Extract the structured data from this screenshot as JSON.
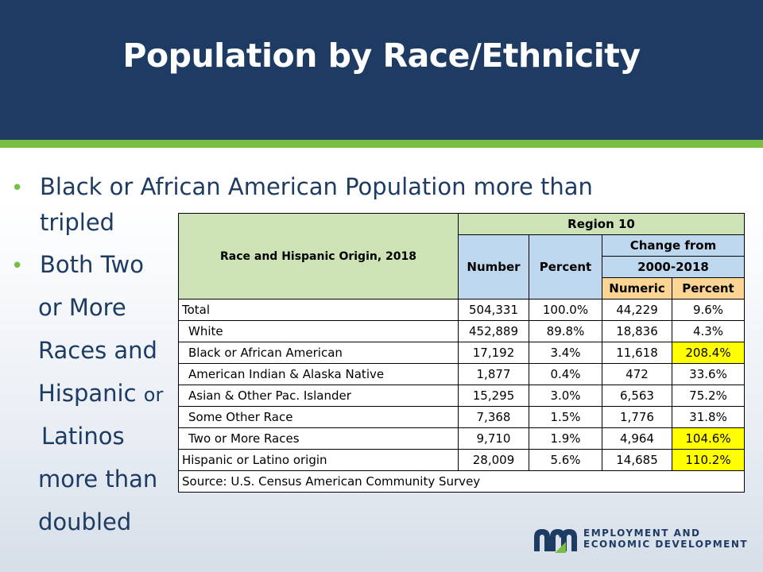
{
  "slide": {
    "title": "Population by Race/Ethnicity"
  },
  "bullets": {
    "b1_line1": "Black or African American Population more than",
    "b1_line2": "tripled",
    "b2_line1": "Both Two",
    "b2_line2": "or More",
    "b2_line3": "Races and",
    "b2_line4_main": "Hispanic",
    "b2_line4_small": "or",
    "b2_line5": "Latinos",
    "b2_line6": "more than",
    "b2_line7": "doubled"
  },
  "table": {
    "race_header": "Race and Hispanic Origin, 2018",
    "region_header": "Region 10",
    "number_header": "Number",
    "percent_header": "Percent",
    "change_header_1": "Change from",
    "change_header_2": "2000-2018",
    "numeric_header": "Numeric",
    "change_percent_header": "Percent",
    "rows": [
      {
        "label": "Total",
        "number": "504,331",
        "percent": "100.0%",
        "numeric": "44,229",
        "change_percent": "9.6%"
      },
      {
        "label": "White",
        "number": "452,889",
        "percent": "89.8%",
        "numeric": "18,836",
        "change_percent": "4.3%"
      },
      {
        "label": "Black or African American",
        "number": "17,192",
        "percent": "3.4%",
        "numeric": "11,618",
        "change_percent": "208.4%"
      },
      {
        "label": "American Indian & Alaska Native",
        "number": "1,877",
        "percent": "0.4%",
        "numeric": "472",
        "change_percent": "33.6%"
      },
      {
        "label": "Asian & Other Pac. Islander",
        "number": "15,295",
        "percent": "3.0%",
        "numeric": "6,563",
        "change_percent": "75.2%"
      },
      {
        "label": "Some Other Race",
        "number": "7,368",
        "percent": "1.5%",
        "numeric": "1,776",
        "change_percent": "31.8%"
      },
      {
        "label": "Two or More Races",
        "number": "9,710",
        "percent": "1.9%",
        "numeric": "4,964",
        "change_percent": "104.6%"
      },
      {
        "label": "Hispanic or Latino origin",
        "number": "28,009",
        "percent": "5.6%",
        "numeric": "14,685",
        "change_percent": "110.2%"
      }
    ],
    "source": "Source: U.S. Census American Community Survey"
  },
  "logo": {
    "line1": "EMPLOYMENT AND",
    "line2": "ECONOMIC DEVELOPMENT",
    "colors": {
      "navy": "#1d3b63",
      "green": "#78be43"
    }
  },
  "colors": {
    "header_bg": "#1d3b63",
    "accent_green": "#78be43",
    "highlight_yellow": "#ffff00",
    "table_header_green": "#cde3b5",
    "table_header_blue": "#bdd7ee",
    "table_header_orange": "#fcd594"
  }
}
